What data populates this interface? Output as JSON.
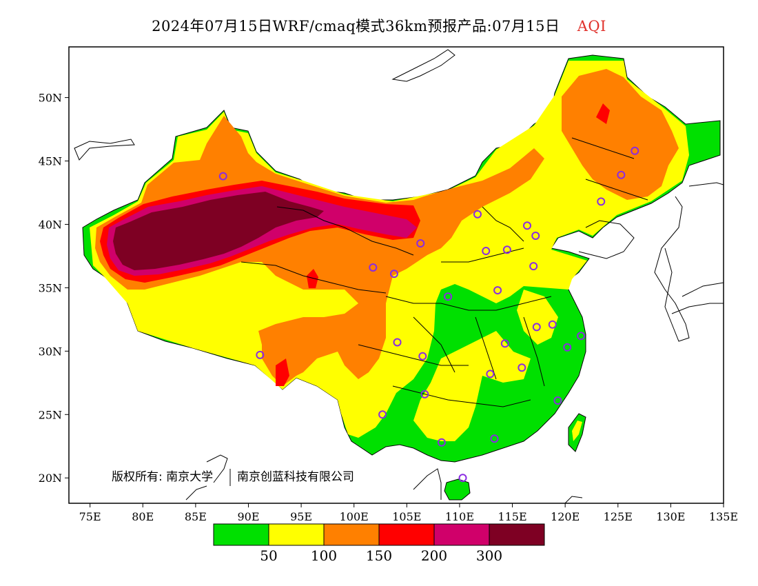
{
  "title": {
    "main": "2024年07月15日WRF/cmaq模式36km预报产品:07月15日",
    "variable": "AQI",
    "variable_color": "#e0312b"
  },
  "map": {
    "lon_range": [
      73,
      135
    ],
    "lat_range": [
      18,
      54
    ],
    "lon_ticks": [
      "75E",
      "80E",
      "85E",
      "90E",
      "95E",
      "100E",
      "105E",
      "110E",
      "115E",
      "120E",
      "125E",
      "130E",
      "135E"
    ],
    "lat_ticks": [
      "20N",
      "25N",
      "30N",
      "35N",
      "40N",
      "45N",
      "50N"
    ],
    "copyright": "版权所有: 南京大学",
    "copyright_partner": "南京创蓝科技有限公司"
  },
  "legend": {
    "colors": [
      "#00e000",
      "#ffff00",
      "#ff8000",
      "#ff0000",
      "#d0006a",
      "#7e0023"
    ],
    "labels": [
      "50",
      "100",
      "150",
      "200",
      "300"
    ]
  },
  "stations": [
    {
      "lon": 87.6,
      "lat": 43.8
    },
    {
      "lon": 91.1,
      "lat": 29.7
    },
    {
      "lon": 101.8,
      "lat": 36.6
    },
    {
      "lon": 103.8,
      "lat": 36.1
    },
    {
      "lon": 106.3,
      "lat": 38.5
    },
    {
      "lon": 104.1,
      "lat": 30.7
    },
    {
      "lon": 106.5,
      "lat": 29.6
    },
    {
      "lon": 102.7,
      "lat": 25.0
    },
    {
      "lon": 106.7,
      "lat": 26.6
    },
    {
      "lon": 108.3,
      "lat": 22.8
    },
    {
      "lon": 110.3,
      "lat": 20.0
    },
    {
      "lon": 113.3,
      "lat": 23.1
    },
    {
      "lon": 112.9,
      "lat": 28.2
    },
    {
      "lon": 114.3,
      "lat": 30.6
    },
    {
      "lon": 115.9,
      "lat": 28.7
    },
    {
      "lon": 119.3,
      "lat": 26.1
    },
    {
      "lon": 120.2,
      "lat": 30.3
    },
    {
      "lon": 121.5,
      "lat": 31.2
    },
    {
      "lon": 118.8,
      "lat": 32.1
    },
    {
      "lon": 117.3,
      "lat": 31.9
    },
    {
      "lon": 113.6,
      "lat": 34.8
    },
    {
      "lon": 108.9,
      "lat": 34.3
    },
    {
      "lon": 112.5,
      "lat": 37.9
    },
    {
      "lon": 114.5,
      "lat": 38.0
    },
    {
      "lon": 117.0,
      "lat": 36.7
    },
    {
      "lon": 116.4,
      "lat": 39.9
    },
    {
      "lon": 117.2,
      "lat": 39.1
    },
    {
      "lon": 111.7,
      "lat": 40.8
    },
    {
      "lon": 123.4,
      "lat": 41.8
    },
    {
      "lon": 125.3,
      "lat": 43.9
    },
    {
      "lon": 126.6,
      "lat": 45.8
    }
  ]
}
